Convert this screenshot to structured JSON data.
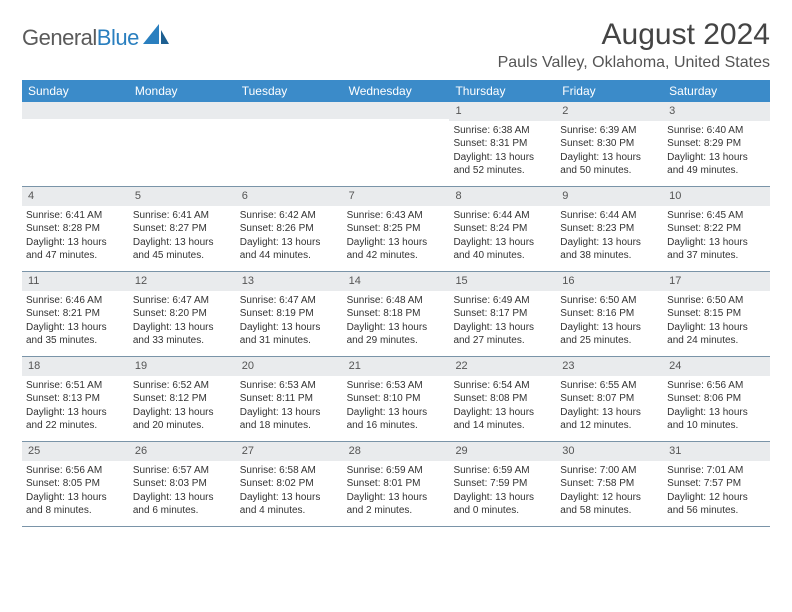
{
  "logo": {
    "text_gray": "General",
    "text_blue": "Blue"
  },
  "title": "August 2024",
  "location": "Pauls Valley, Oklahoma, United States",
  "colors": {
    "header_bg": "#3b8bc9",
    "daynum_bg": "#e9ebed",
    "week_border": "#7a94a8",
    "text": "#333333",
    "title_text": "#444444",
    "logo_gray": "#5a5a5a",
    "logo_blue": "#2a7fbf"
  },
  "weekdays": [
    "Sunday",
    "Monday",
    "Tuesday",
    "Wednesday",
    "Thursday",
    "Friday",
    "Saturday"
  ],
  "weeks": [
    [
      {
        "num": "",
        "lines": []
      },
      {
        "num": "",
        "lines": []
      },
      {
        "num": "",
        "lines": []
      },
      {
        "num": "",
        "lines": []
      },
      {
        "num": "1",
        "lines": [
          "Sunrise: 6:38 AM",
          "Sunset: 8:31 PM",
          "Daylight: 13 hours and 52 minutes."
        ]
      },
      {
        "num": "2",
        "lines": [
          "Sunrise: 6:39 AM",
          "Sunset: 8:30 PM",
          "Daylight: 13 hours and 50 minutes."
        ]
      },
      {
        "num": "3",
        "lines": [
          "Sunrise: 6:40 AM",
          "Sunset: 8:29 PM",
          "Daylight: 13 hours and 49 minutes."
        ]
      }
    ],
    [
      {
        "num": "4",
        "lines": [
          "Sunrise: 6:41 AM",
          "Sunset: 8:28 PM",
          "Daylight: 13 hours and 47 minutes."
        ]
      },
      {
        "num": "5",
        "lines": [
          "Sunrise: 6:41 AM",
          "Sunset: 8:27 PM",
          "Daylight: 13 hours and 45 minutes."
        ]
      },
      {
        "num": "6",
        "lines": [
          "Sunrise: 6:42 AM",
          "Sunset: 8:26 PM",
          "Daylight: 13 hours and 44 minutes."
        ]
      },
      {
        "num": "7",
        "lines": [
          "Sunrise: 6:43 AM",
          "Sunset: 8:25 PM",
          "Daylight: 13 hours and 42 minutes."
        ]
      },
      {
        "num": "8",
        "lines": [
          "Sunrise: 6:44 AM",
          "Sunset: 8:24 PM",
          "Daylight: 13 hours and 40 minutes."
        ]
      },
      {
        "num": "9",
        "lines": [
          "Sunrise: 6:44 AM",
          "Sunset: 8:23 PM",
          "Daylight: 13 hours and 38 minutes."
        ]
      },
      {
        "num": "10",
        "lines": [
          "Sunrise: 6:45 AM",
          "Sunset: 8:22 PM",
          "Daylight: 13 hours and 37 minutes."
        ]
      }
    ],
    [
      {
        "num": "11",
        "lines": [
          "Sunrise: 6:46 AM",
          "Sunset: 8:21 PM",
          "Daylight: 13 hours and 35 minutes."
        ]
      },
      {
        "num": "12",
        "lines": [
          "Sunrise: 6:47 AM",
          "Sunset: 8:20 PM",
          "Daylight: 13 hours and 33 minutes."
        ]
      },
      {
        "num": "13",
        "lines": [
          "Sunrise: 6:47 AM",
          "Sunset: 8:19 PM",
          "Daylight: 13 hours and 31 minutes."
        ]
      },
      {
        "num": "14",
        "lines": [
          "Sunrise: 6:48 AM",
          "Sunset: 8:18 PM",
          "Daylight: 13 hours and 29 minutes."
        ]
      },
      {
        "num": "15",
        "lines": [
          "Sunrise: 6:49 AM",
          "Sunset: 8:17 PM",
          "Daylight: 13 hours and 27 minutes."
        ]
      },
      {
        "num": "16",
        "lines": [
          "Sunrise: 6:50 AM",
          "Sunset: 8:16 PM",
          "Daylight: 13 hours and 25 minutes."
        ]
      },
      {
        "num": "17",
        "lines": [
          "Sunrise: 6:50 AM",
          "Sunset: 8:15 PM",
          "Daylight: 13 hours and 24 minutes."
        ]
      }
    ],
    [
      {
        "num": "18",
        "lines": [
          "Sunrise: 6:51 AM",
          "Sunset: 8:13 PM",
          "Daylight: 13 hours and 22 minutes."
        ]
      },
      {
        "num": "19",
        "lines": [
          "Sunrise: 6:52 AM",
          "Sunset: 8:12 PM",
          "Daylight: 13 hours and 20 minutes."
        ]
      },
      {
        "num": "20",
        "lines": [
          "Sunrise: 6:53 AM",
          "Sunset: 8:11 PM",
          "Daylight: 13 hours and 18 minutes."
        ]
      },
      {
        "num": "21",
        "lines": [
          "Sunrise: 6:53 AM",
          "Sunset: 8:10 PM",
          "Daylight: 13 hours and 16 minutes."
        ]
      },
      {
        "num": "22",
        "lines": [
          "Sunrise: 6:54 AM",
          "Sunset: 8:08 PM",
          "Daylight: 13 hours and 14 minutes."
        ]
      },
      {
        "num": "23",
        "lines": [
          "Sunrise: 6:55 AM",
          "Sunset: 8:07 PM",
          "Daylight: 13 hours and 12 minutes."
        ]
      },
      {
        "num": "24",
        "lines": [
          "Sunrise: 6:56 AM",
          "Sunset: 8:06 PM",
          "Daylight: 13 hours and 10 minutes."
        ]
      }
    ],
    [
      {
        "num": "25",
        "lines": [
          "Sunrise: 6:56 AM",
          "Sunset: 8:05 PM",
          "Daylight: 13 hours and 8 minutes."
        ]
      },
      {
        "num": "26",
        "lines": [
          "Sunrise: 6:57 AM",
          "Sunset: 8:03 PM",
          "Daylight: 13 hours and 6 minutes."
        ]
      },
      {
        "num": "27",
        "lines": [
          "Sunrise: 6:58 AM",
          "Sunset: 8:02 PM",
          "Daylight: 13 hours and 4 minutes."
        ]
      },
      {
        "num": "28",
        "lines": [
          "Sunrise: 6:59 AM",
          "Sunset: 8:01 PM",
          "Daylight: 13 hours and 2 minutes."
        ]
      },
      {
        "num": "29",
        "lines": [
          "Sunrise: 6:59 AM",
          "Sunset: 7:59 PM",
          "Daylight: 13 hours and 0 minutes."
        ]
      },
      {
        "num": "30",
        "lines": [
          "Sunrise: 7:00 AM",
          "Sunset: 7:58 PM",
          "Daylight: 12 hours and 58 minutes."
        ]
      },
      {
        "num": "31",
        "lines": [
          "Sunrise: 7:01 AM",
          "Sunset: 7:57 PM",
          "Daylight: 12 hours and 56 minutes."
        ]
      }
    ]
  ]
}
